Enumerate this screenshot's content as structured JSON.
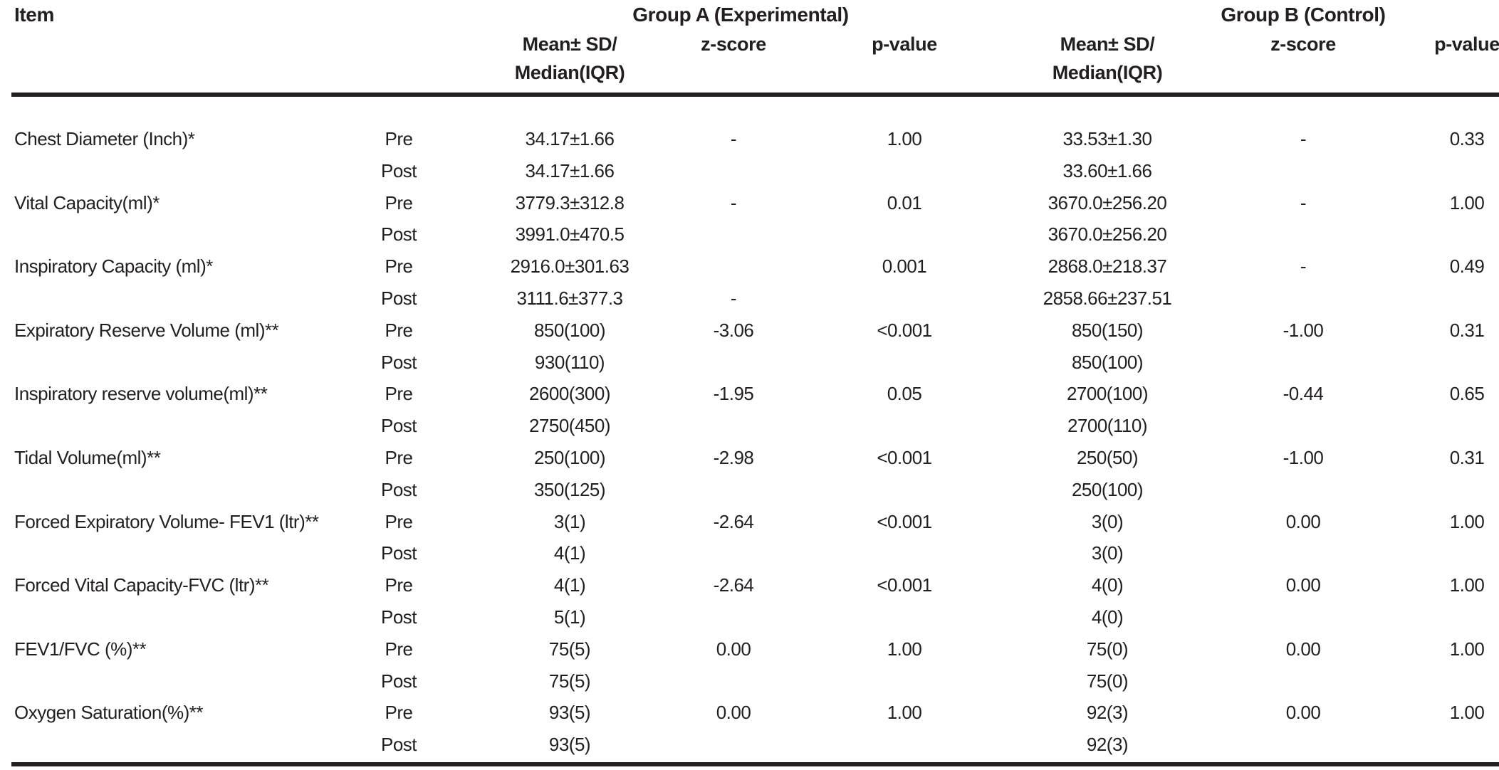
{
  "table": {
    "columns": {
      "item": "Item",
      "group_a": "Group A (Experimental)",
      "group_b": "Group B (Control)",
      "mean_line1": "Mean± SD/",
      "mean_line2": "Median(IQR)",
      "z_score": "z-score",
      "p_value": "p-value"
    },
    "rows": [
      {
        "item": "Chest Diameter (Inch)*",
        "pre": {
          "phase": "Pre",
          "a_mean": "34.17±1.66",
          "a_z": "-",
          "a_p": "1.00",
          "b_mean": "33.53±1.30",
          "b_z": "-",
          "b_p": "0.33"
        },
        "post": {
          "phase": "Post",
          "a_mean": "34.17±1.66",
          "b_mean": "33.60±1.66"
        }
      },
      {
        "item": "Vital Capacity(ml)*",
        "pre": {
          "phase": "Pre",
          "a_mean": "3779.3±312.8",
          "a_z": "-",
          "a_p": "0.01",
          "b_mean": "3670.0±256.20",
          "b_z": "-",
          "b_p": "1.00"
        },
        "post": {
          "phase": "Post",
          "a_mean": "3991.0±470.5",
          "b_mean": "3670.0±256.20"
        }
      },
      {
        "item": "Inspiratory Capacity (ml)*",
        "pre": {
          "phase": "Pre",
          "a_mean": "2916.0±301.63",
          "a_p": "0.001",
          "b_mean": "2868.0±218.37",
          "b_z": "-",
          "b_p": "0.49"
        },
        "post": {
          "phase": "Post",
          "a_mean": "3111.6±377.3",
          "a_z": "-",
          "b_mean": "2858.66±237.51"
        }
      },
      {
        "item": "Expiratory Reserve Volume (ml)**",
        "pre": {
          "phase": "Pre",
          "a_mean": "850(100)",
          "a_z": "-3.06",
          "a_p": "<0.001",
          "b_mean": "850(150)",
          "b_z": "-1.00",
          "b_p": "0.31"
        },
        "post": {
          "phase": "Post",
          "a_mean": "930(110)",
          "b_mean": "850(100)"
        }
      },
      {
        "item": "Inspiratory reserve volume(ml)**",
        "pre": {
          "phase": "Pre",
          "a_mean": "2600(300)",
          "a_z": "-1.95",
          "a_p": "0.05",
          "b_mean": "2700(100)",
          "b_z": "-0.44",
          "b_p": "0.65"
        },
        "post": {
          "phase": "Post",
          "a_mean": "2750(450)",
          "b_mean": "2700(110)"
        }
      },
      {
        "item": "Tidal Volume(ml)**",
        "pre": {
          "phase": "Pre",
          "a_mean": "250(100)",
          "a_z": "-2.98",
          "a_p": "<0.001",
          "b_mean": "250(50)",
          "b_z": "-1.00",
          "b_p": "0.31"
        },
        "post": {
          "phase": "Post",
          "a_mean": "350(125)",
          "b_mean": "250(100)"
        }
      },
      {
        "item": "Forced Expiratory Volume- FEV1 (ltr)**",
        "pre": {
          "phase": "Pre",
          "a_mean": "3(1)",
          "a_z": "-2.64",
          "a_p": "<0.001",
          "b_mean": "3(0)",
          "b_z": "0.00",
          "b_p": "1.00"
        },
        "post": {
          "phase": "Post",
          "a_mean": "4(1)",
          "b_mean": "3(0)"
        }
      },
      {
        "item": "Forced Vital Capacity-FVC (ltr)**",
        "pre": {
          "phase": "Pre",
          "a_mean": "4(1)",
          "a_z": "-2.64",
          "a_p": "<0.001",
          "b_mean": "4(0)",
          "b_z": "0.00",
          "b_p": "1.00"
        },
        "post": {
          "phase": "Post",
          "a_mean": "5(1)",
          "b_mean": "4(0)"
        }
      },
      {
        "item": "FEV1/FVC (%)**",
        "pre": {
          "phase": "Pre",
          "a_mean": "75(5)",
          "a_z": "0.00",
          "a_p": "1.00",
          "b_mean": "75(0)",
          "b_z": "0.00",
          "b_p": "1.00"
        },
        "post": {
          "phase": "Post",
          "a_mean": "75(5)",
          "b_mean": "75(0)"
        }
      },
      {
        "item": "Oxygen Saturation(%)**",
        "pre": {
          "phase": "Pre",
          "a_mean": "93(5)",
          "a_z": "0.00",
          "a_p": "1.00",
          "b_mean": "92(3)",
          "b_z": "0.00",
          "b_p": "1.00"
        },
        "post": {
          "phase": "Post",
          "a_mean": "93(5)",
          "b_mean": "92(3)"
        }
      }
    ]
  },
  "colors": {
    "text": "#231f20",
    "rule": "#231f20",
    "background": "#ffffff"
  }
}
